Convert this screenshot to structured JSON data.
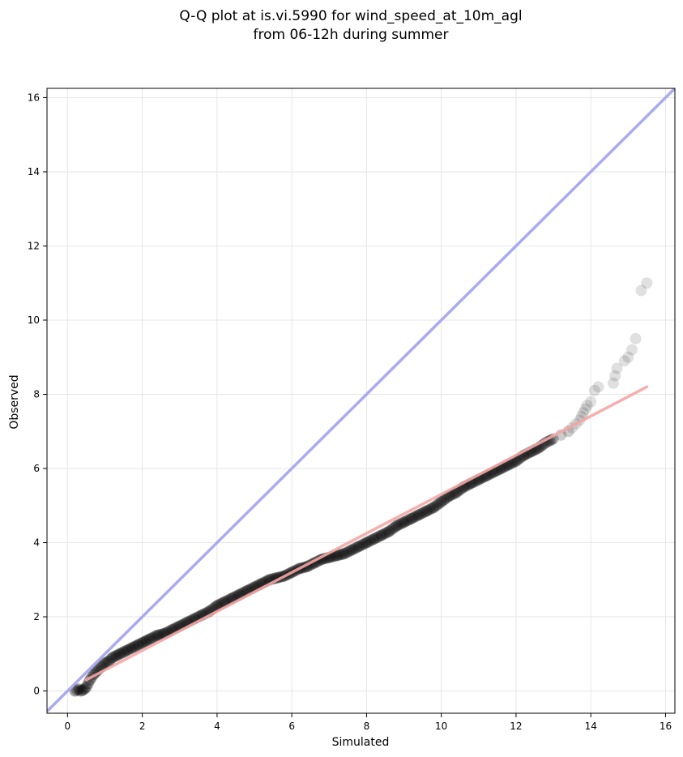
{
  "chart_data": {
    "type": "scatter",
    "title": "Q-Q plot at is.vi.5990 for wind_speed_at_10m_agl",
    "subtitle": "from 06-12h during summer",
    "xlabel": "Simulated",
    "ylabel": "Observed",
    "xlim": [
      -0.55,
      16.25
    ],
    "ylim": [
      -0.6,
      16.25
    ],
    "xticks": [
      0,
      2,
      4,
      6,
      8,
      10,
      12,
      14,
      16
    ],
    "yticks": [
      0,
      2,
      4,
      6,
      8,
      10,
      12,
      14,
      16
    ],
    "grid": true,
    "reference_line": {
      "name": "1:1",
      "color": "#aaaaf0",
      "x": [
        -0.55,
        16.25
      ],
      "y": [
        -0.55,
        16.25
      ]
    },
    "fit_line": {
      "color": "#f5a5a5",
      "x": [
        0.5,
        15.5
      ],
      "y": [
        0.3,
        8.2
      ]
    },
    "quantiles": {
      "x": [
        0.2,
        0.3,
        0.35,
        0.4,
        0.45,
        0.5,
        0.55,
        0.6,
        0.7,
        0.8,
        0.9,
        1.0,
        1.1,
        1.2,
        1.3,
        1.4,
        1.5,
        1.6,
        1.7,
        1.8,
        1.9,
        2.0,
        2.1,
        2.2,
        2.4,
        2.6,
        2.8,
        3.0,
        3.2,
        3.4,
        3.6,
        3.8,
        4.0,
        4.2,
        4.4,
        4.6,
        4.8,
        5.0,
        5.2,
        5.4,
        5.6,
        5.8,
        6.0,
        6.2,
        6.4,
        6.6,
        6.8,
        7.0,
        7.2,
        7.4,
        7.6,
        7.8,
        8.0,
        8.2,
        8.4,
        8.6,
        8.8,
        9.0,
        9.2,
        9.4,
        9.6,
        9.8,
        10.0,
        10.2,
        10.4,
        10.6,
        10.8,
        11.0,
        11.2,
        11.4,
        11.6,
        11.8,
        12.0,
        12.2,
        12.4,
        12.6,
        12.8,
        13.0,
        13.2,
        13.4,
        13.5,
        13.6,
        13.7,
        13.75,
        13.8,
        13.85,
        13.9,
        14.0,
        14.1,
        14.2,
        14.6,
        14.65,
        14.7,
        14.9,
        15.0,
        15.1,
        15.2,
        15.35,
        15.5
      ],
      "y": [
        0.0,
        0.05,
        0.0,
        0.02,
        0.05,
        0.1,
        0.2,
        0.3,
        0.45,
        0.55,
        0.65,
        0.75,
        0.8,
        0.9,
        0.95,
        1.0,
        1.05,
        1.1,
        1.15,
        1.2,
        1.25,
        1.3,
        1.35,
        1.4,
        1.5,
        1.55,
        1.65,
        1.75,
        1.85,
        1.95,
        2.05,
        2.15,
        2.3,
        2.4,
        2.5,
        2.6,
        2.7,
        2.8,
        2.9,
        3.0,
        3.05,
        3.1,
        3.2,
        3.3,
        3.35,
        3.45,
        3.55,
        3.6,
        3.65,
        3.7,
        3.8,
        3.9,
        4.0,
        4.1,
        4.2,
        4.3,
        4.45,
        4.55,
        4.65,
        4.75,
        4.85,
        4.95,
        5.1,
        5.25,
        5.35,
        5.5,
        5.6,
        5.7,
        5.8,
        5.9,
        6.0,
        6.1,
        6.2,
        6.35,
        6.45,
        6.55,
        6.7,
        6.8,
        6.9,
        7.0,
        7.1,
        7.2,
        7.3,
        7.4,
        7.5,
        7.6,
        7.7,
        7.8,
        8.1,
        8.2,
        8.3,
        8.5,
        8.7,
        8.9,
        9.0,
        9.2,
        9.5,
        10.8,
        11.0
      ]
    }
  }
}
